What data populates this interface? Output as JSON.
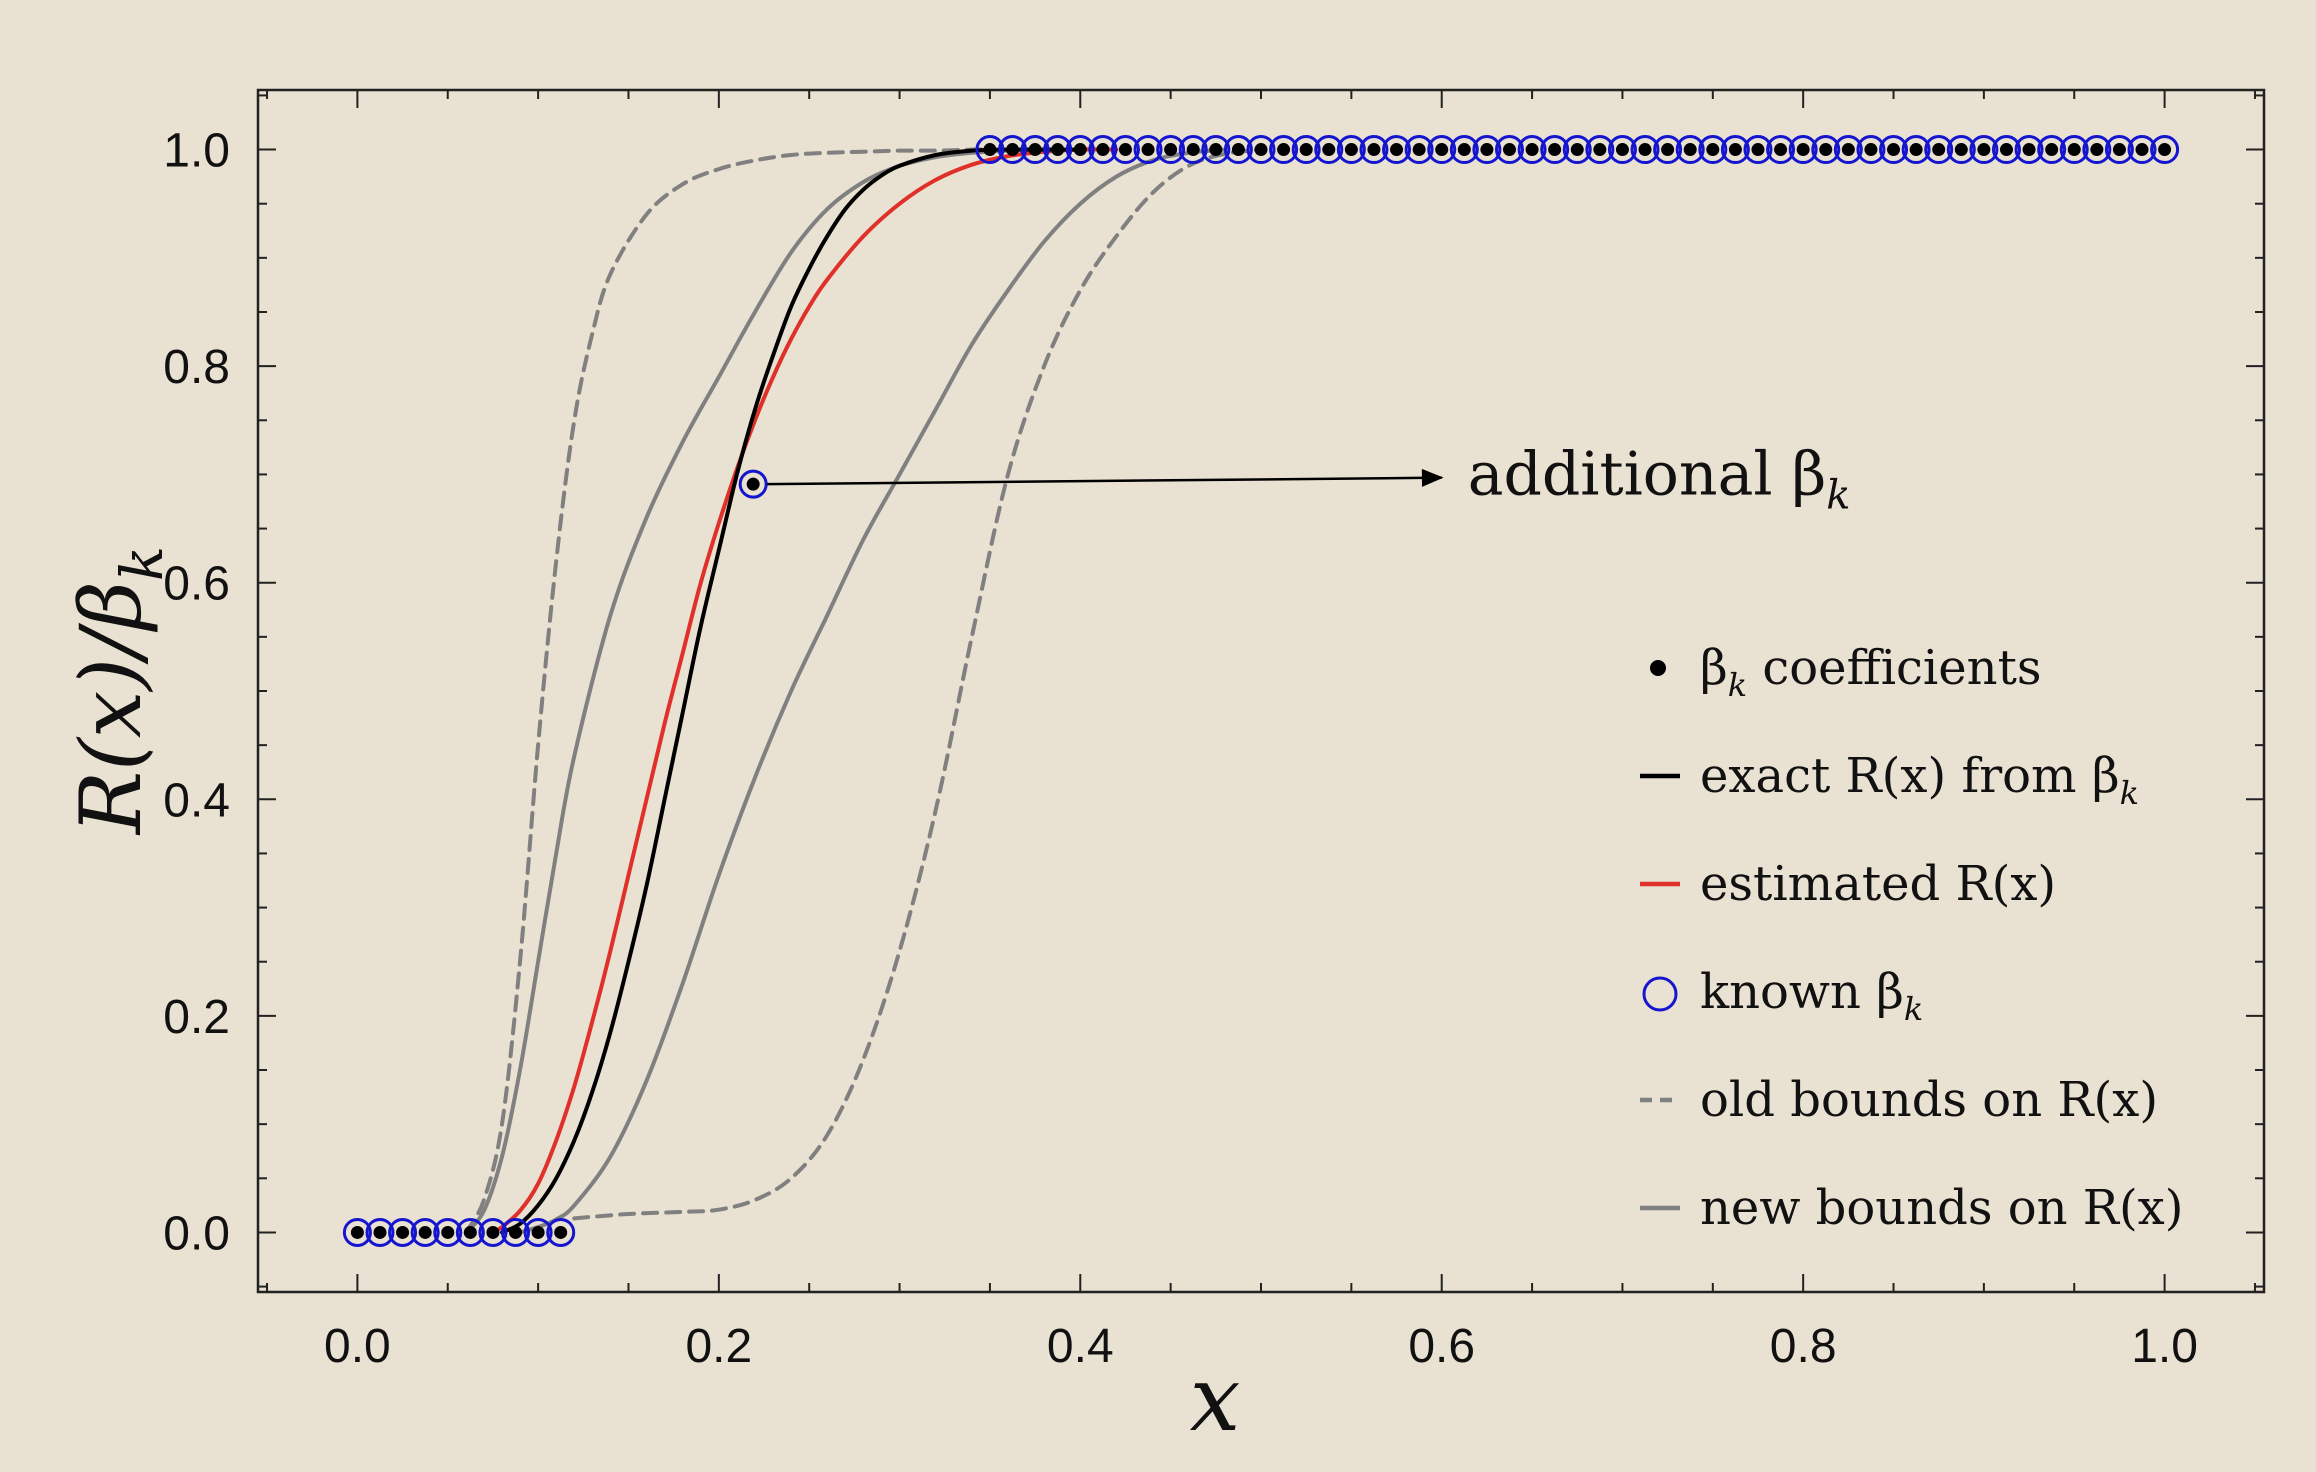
{
  "chart_data": {
    "type": "line",
    "xlabel": "x",
    "ylabel": "R(x)/β",
    "ylabel_sub": "k",
    "xlim": [
      -0.055,
      1.055
    ],
    "ylim": [
      -0.055,
      1.055
    ],
    "xticks": [
      0.0,
      0.2,
      0.4,
      0.6,
      0.8,
      1.0
    ],
    "yticks": [
      0.0,
      0.2,
      0.4,
      0.6,
      0.8,
      1.0
    ],
    "xtick_labels": [
      "0.0",
      "0.2",
      "0.4",
      "0.6",
      "0.8",
      "1.0"
    ],
    "ytick_labels": [
      "0.0",
      "0.2",
      "0.4",
      "0.6",
      "0.8",
      "1.0"
    ],
    "colors": {
      "background": "#e9e1d1",
      "exact": "#000000",
      "estimated": "#e0302a",
      "known": "#1515d0",
      "bounds": "#808080"
    },
    "annotation": {
      "text": "additional β",
      "sub": "k",
      "point": [
        0.219,
        0.691
      ],
      "arrow_to": [
        0.6,
        0.697
      ]
    },
    "legend": {
      "position": "right",
      "entries": [
        {
          "text": "β",
          "sub": "k",
          "tail": " coefficients",
          "marker": "dot"
        },
        {
          "text": "exact R(x) from β",
          "sub": "k",
          "tail": "",
          "marker": "black-line"
        },
        {
          "text": "estimated R(x)",
          "sub": "",
          "tail": "",
          "marker": "red-line"
        },
        {
          "text": "known β",
          "sub": "k",
          "tail": "",
          "marker": "circle"
        },
        {
          "text": "old bounds on R(x)",
          "sub": "",
          "tail": "",
          "marker": "dashed-line"
        },
        {
          "text": "new bounds on R(x)",
          "sub": "",
          "tail": "",
          "marker": "gray-line"
        }
      ]
    },
    "series": [
      {
        "name": "β",
        "name_sub": "k",
        "name_tail": " coefficients",
        "style": "dots",
        "x": [
          0.0,
          0.0125,
          0.025,
          0.0375,
          0.05,
          0.0625,
          0.075,
          0.0875,
          0.1,
          0.1125,
          0.219,
          0.35,
          0.3625,
          0.375,
          0.3875,
          0.4,
          0.4125,
          0.425,
          0.4375,
          0.45,
          0.4625,
          0.475,
          0.4875,
          0.5,
          0.5125,
          0.525,
          0.5375,
          0.55,
          0.5625,
          0.575,
          0.5875,
          0.6,
          0.6125,
          0.625,
          0.6375,
          0.65,
          0.6625,
          0.675,
          0.6875,
          0.7,
          0.7125,
          0.725,
          0.7375,
          0.75,
          0.7625,
          0.775,
          0.7875,
          0.8,
          0.8125,
          0.825,
          0.8375,
          0.85,
          0.8625,
          0.875,
          0.8875,
          0.9,
          0.9125,
          0.925,
          0.9375,
          0.95,
          0.9625,
          0.975,
          0.9875,
          1.0
        ],
        "y": [
          0.0,
          0.0,
          0.0,
          0.0,
          0.0,
          0.0,
          0.0,
          0.0,
          0.0,
          0.0,
          0.691,
          1.0,
          1.0,
          1.0,
          1.0,
          1.0,
          1.0,
          1.0,
          1.0,
          1.0,
          1.0,
          1.0,
          1.0,
          1.0,
          1.0,
          1.0,
          1.0,
          1.0,
          1.0,
          1.0,
          1.0,
          1.0,
          1.0,
          1.0,
          1.0,
          1.0,
          1.0,
          1.0,
          1.0,
          1.0,
          1.0,
          1.0,
          1.0,
          1.0,
          1.0,
          1.0,
          1.0,
          1.0,
          1.0,
          1.0,
          1.0,
          1.0,
          1.0,
          1.0,
          1.0,
          1.0,
          1.0,
          1.0,
          1.0,
          1.0,
          1.0,
          1.0,
          1.0,
          1.0
        ]
      },
      {
        "name": "known β",
        "name_sub": "k",
        "style": "circles",
        "x": [
          0.0,
          0.0125,
          0.025,
          0.0375,
          0.05,
          0.0625,
          0.075,
          0.0875,
          0.1,
          0.1125,
          0.219,
          0.35,
          0.3625,
          0.375,
          0.3875,
          0.4,
          0.4125,
          0.425,
          0.4375,
          0.45,
          0.4625,
          0.475,
          0.4875,
          0.5,
          0.5125,
          0.525,
          0.5375,
          0.55,
          0.5625,
          0.575,
          0.5875,
          0.6,
          0.6125,
          0.625,
          0.6375,
          0.65,
          0.6625,
          0.675,
          0.6875,
          0.7,
          0.7125,
          0.725,
          0.7375,
          0.75,
          0.7625,
          0.775,
          0.7875,
          0.8,
          0.8125,
          0.825,
          0.8375,
          0.85,
          0.8625,
          0.875,
          0.8875,
          0.9,
          0.9125,
          0.925,
          0.9375,
          0.95,
          0.9625,
          0.975,
          0.9875,
          1.0
        ],
        "y": [
          0.0,
          0.0,
          0.0,
          0.0,
          0.0,
          0.0,
          0.0,
          0.0,
          0.0,
          0.0,
          0.691,
          1.0,
          1.0,
          1.0,
          1.0,
          1.0,
          1.0,
          1.0,
          1.0,
          1.0,
          1.0,
          1.0,
          1.0,
          1.0,
          1.0,
          1.0,
          1.0,
          1.0,
          1.0,
          1.0,
          1.0,
          1.0,
          1.0,
          1.0,
          1.0,
          1.0,
          1.0,
          1.0,
          1.0,
          1.0,
          1.0,
          1.0,
          1.0,
          1.0,
          1.0,
          1.0,
          1.0,
          1.0,
          1.0,
          1.0,
          1.0,
          1.0,
          1.0,
          1.0,
          1.0,
          1.0,
          1.0,
          1.0,
          1.0,
          1.0,
          1.0,
          1.0,
          1.0,
          1.0
        ]
      },
      {
        "name": "old bounds on R(x)",
        "style": "dashed",
        "x": [
          0.06,
          0.07,
          0.08,
          0.09,
          0.1,
          0.11,
          0.12,
          0.13,
          0.14,
          0.16,
          0.18,
          0.2,
          0.22,
          0.24,
          0.26,
          0.28,
          0.3,
          0.32,
          0.34,
          0.35
        ],
        "y": [
          0.0,
          0.03,
          0.1,
          0.25,
          0.45,
          0.62,
          0.75,
          0.83,
          0.885,
          0.94,
          0.968,
          0.982,
          0.99,
          0.995,
          0.997,
          0.998,
          0.999,
          0.999,
          1.0,
          1.0
        ]
      },
      {
        "name": "old bounds on R(x)",
        "style": "dashed",
        "x": [
          0.12,
          0.15,
          0.18,
          0.2,
          0.22,
          0.24,
          0.26,
          0.28,
          0.3,
          0.32,
          0.34,
          0.36,
          0.38,
          0.4,
          0.42,
          0.44,
          0.46,
          0.48,
          0.5
        ],
        "y": [
          0.013,
          0.017,
          0.019,
          0.021,
          0.03,
          0.05,
          0.09,
          0.16,
          0.26,
          0.39,
          0.55,
          0.7,
          0.8,
          0.87,
          0.92,
          0.96,
          0.985,
          0.996,
          1.0
        ]
      },
      {
        "name": "new bounds on R(x)",
        "style": "gray",
        "x": [
          0.06,
          0.07,
          0.08,
          0.09,
          0.1,
          0.11,
          0.12,
          0.14,
          0.16,
          0.18,
          0.2,
          0.22,
          0.24,
          0.26,
          0.28,
          0.3,
          0.32,
          0.34,
          0.36,
          0.38,
          0.4
        ],
        "y": [
          0.0,
          0.02,
          0.07,
          0.15,
          0.25,
          0.35,
          0.44,
          0.57,
          0.66,
          0.73,
          0.79,
          0.85,
          0.905,
          0.945,
          0.97,
          0.985,
          0.993,
          0.997,
          0.999,
          1.0,
          1.0
        ]
      },
      {
        "name": "new bounds on R(x)",
        "style": "gray",
        "x": [
          0.09,
          0.1,
          0.11,
          0.12,
          0.14,
          0.16,
          0.18,
          0.2,
          0.22,
          0.24,
          0.26,
          0.28,
          0.3,
          0.32,
          0.34,
          0.36,
          0.38,
          0.4,
          0.42,
          0.44,
          0.46,
          0.48
        ],
        "y": [
          0.0,
          0.005,
          0.012,
          0.025,
          0.07,
          0.14,
          0.23,
          0.33,
          0.42,
          0.5,
          0.57,
          0.64,
          0.7,
          0.76,
          0.82,
          0.87,
          0.915,
          0.95,
          0.975,
          0.99,
          0.997,
          1.0
        ]
      },
      {
        "name": "estimated R(x)",
        "style": "red",
        "x": [
          0.075,
          0.08,
          0.09,
          0.1,
          0.11,
          0.12,
          0.13,
          0.14,
          0.15,
          0.16,
          0.17,
          0.18,
          0.19,
          0.2,
          0.21,
          0.22,
          0.23,
          0.24,
          0.25,
          0.26,
          0.28,
          0.3,
          0.32,
          0.34,
          0.36,
          0.38,
          0.4,
          0.42
        ],
        "y": [
          0.0,
          0.005,
          0.02,
          0.045,
          0.085,
          0.135,
          0.195,
          0.26,
          0.33,
          0.4,
          0.47,
          0.535,
          0.6,
          0.655,
          0.705,
          0.75,
          0.79,
          0.825,
          0.855,
          0.88,
          0.92,
          0.95,
          0.972,
          0.986,
          0.994,
          0.998,
          1.0,
          1.0
        ]
      },
      {
        "name": "exact R(x) from β",
        "name_sub": "k",
        "style": "black",
        "x": [
          0.08,
          0.09,
          0.1,
          0.11,
          0.12,
          0.13,
          0.14,
          0.15,
          0.16,
          0.17,
          0.18,
          0.19,
          0.2,
          0.21,
          0.22,
          0.23,
          0.24,
          0.25,
          0.26,
          0.27,
          0.28,
          0.29,
          0.3,
          0.32,
          0.34,
          0.36,
          0.38,
          0.4
        ],
        "y": [
          0.0,
          0.008,
          0.025,
          0.05,
          0.085,
          0.13,
          0.185,
          0.25,
          0.32,
          0.4,
          0.48,
          0.56,
          0.63,
          0.7,
          0.76,
          0.81,
          0.855,
          0.89,
          0.92,
          0.945,
          0.963,
          0.976,
          0.985,
          0.995,
          0.999,
          1.0,
          1.0,
          1.0
        ]
      }
    ]
  }
}
